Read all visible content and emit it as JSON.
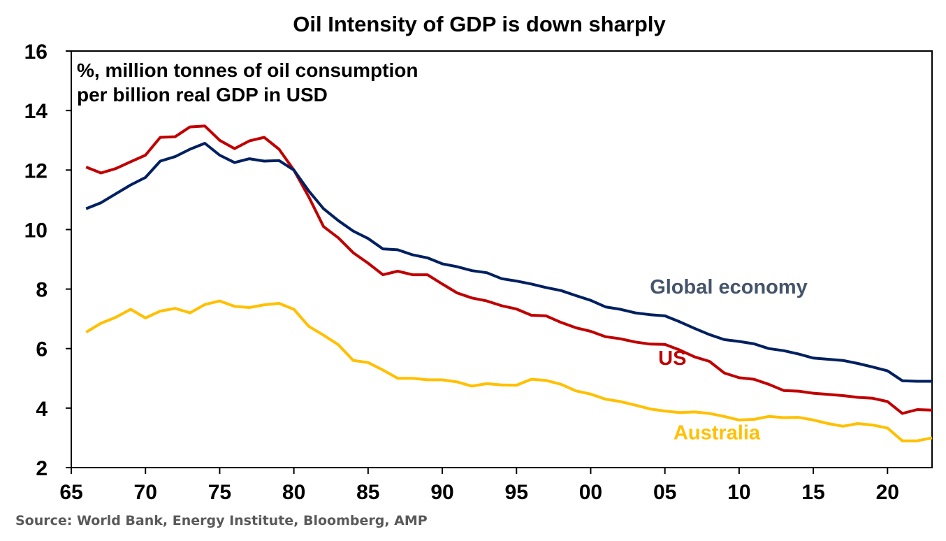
{
  "chart_data": {
    "type": "line",
    "title": "Oil Intensity of GDP is down sharply",
    "subtitle_lines": [
      "%, million tonnes of oil consumption",
      "per billion real GDP in USD"
    ],
    "xlabel": "",
    "ylabel": "",
    "xlim": [
      1965,
      2023
    ],
    "ylim": [
      2,
      16
    ],
    "grid": false,
    "x_ticks": [
      {
        "value": 1965,
        "label": "65"
      },
      {
        "value": 1970,
        "label": "70"
      },
      {
        "value": 1975,
        "label": "75"
      },
      {
        "value": 1980,
        "label": "80"
      },
      {
        "value": 1985,
        "label": "85"
      },
      {
        "value": 1990,
        "label": "90"
      },
      {
        "value": 1995,
        "label": "95"
      },
      {
        "value": 2000,
        "label": "00"
      },
      {
        "value": 2005,
        "label": "05"
      },
      {
        "value": 2010,
        "label": "10"
      },
      {
        "value": 2015,
        "label": "15"
      },
      {
        "value": 2020,
        "label": "20"
      }
    ],
    "y_ticks": [
      {
        "value": 2,
        "label": "2"
      },
      {
        "value": 4,
        "label": "4"
      },
      {
        "value": 6,
        "label": "6"
      },
      {
        "value": 8,
        "label": "8"
      },
      {
        "value": 10,
        "label": "10"
      },
      {
        "value": 12,
        "label": "12"
      },
      {
        "value": 14,
        "label": "14"
      },
      {
        "value": 16,
        "label": "16"
      }
    ],
    "x": [
      1966,
      1967,
      1968,
      1969,
      1970,
      1971,
      1972,
      1973,
      1974,
      1975,
      1976,
      1977,
      1978,
      1979,
      1980,
      1981,
      1982,
      1983,
      1984,
      1985,
      1986,
      1987,
      1988,
      1989,
      1990,
      1991,
      1992,
      1993,
      1994,
      1995,
      1996,
      1997,
      1998,
      1999,
      2000,
      2001,
      2002,
      2003,
      2004,
      2005,
      2006,
      2007,
      2008,
      2009,
      2010,
      2011,
      2012,
      2013,
      2014,
      2015,
      2016,
      2017,
      2018,
      2019,
      2020,
      2021,
      2022,
      2023
    ],
    "series": [
      {
        "name": "Global economy",
        "color": "#002060",
        "label_color": "#44546A",
        "values": [
          10.7,
          10.9,
          11.2,
          11.5,
          11.75,
          12.3,
          12.45,
          12.7,
          12.9,
          12.5,
          12.25,
          12.38,
          12.3,
          12.32,
          12.0,
          11.3,
          10.7,
          10.3,
          9.95,
          9.7,
          9.35,
          9.32,
          9.15,
          9.05,
          8.85,
          8.75,
          8.62,
          8.55,
          8.35,
          8.27,
          8.17,
          8.05,
          7.95,
          7.78,
          7.62,
          7.4,
          7.32,
          7.2,
          7.14,
          7.1,
          6.9,
          6.68,
          6.47,
          6.3,
          6.24,
          6.16,
          6.0,
          5.93,
          5.82,
          5.68,
          5.64,
          5.6,
          5.5,
          5.38,
          5.25,
          4.92,
          4.9,
          4.9
        ]
      },
      {
        "name": "US",
        "color": "#C00000",
        "label_color": "#C00000",
        "values": [
          12.1,
          11.9,
          12.05,
          12.28,
          12.5,
          13.1,
          13.12,
          13.45,
          13.48,
          13.0,
          12.72,
          12.98,
          13.1,
          12.7,
          12.0,
          11.1,
          10.1,
          9.72,
          9.22,
          8.87,
          8.48,
          8.6,
          8.48,
          8.48,
          8.17,
          7.87,
          7.7,
          7.6,
          7.44,
          7.33,
          7.12,
          7.1,
          6.88,
          6.7,
          6.58,
          6.4,
          6.33,
          6.22,
          6.15,
          6.14,
          5.95,
          5.72,
          5.57,
          5.18,
          5.02,
          4.97,
          4.8,
          4.59,
          4.57,
          4.5,
          4.46,
          4.42,
          4.36,
          4.33,
          4.22,
          3.82,
          3.95,
          3.93
        ]
      },
      {
        "name": "Australia",
        "color": "#FFC000",
        "label_color": "#FFC000",
        "values": [
          6.55,
          6.85,
          7.05,
          7.32,
          7.03,
          7.26,
          7.35,
          7.2,
          7.48,
          7.6,
          7.42,
          7.38,
          7.47,
          7.52,
          7.32,
          6.75,
          6.45,
          6.13,
          5.6,
          5.53,
          5.28,
          5.0,
          5.0,
          4.95,
          4.95,
          4.88,
          4.74,
          4.82,
          4.78,
          4.77,
          4.97,
          4.93,
          4.8,
          4.58,
          4.47,
          4.3,
          4.22,
          4.1,
          3.97,
          3.9,
          3.85,
          3.87,
          3.82,
          3.72,
          3.6,
          3.62,
          3.72,
          3.68,
          3.69,
          3.6,
          3.48,
          3.39,
          3.48,
          3.43,
          3.33,
          2.9,
          2.9,
          3.0
        ]
      }
    ],
    "series_labels": [
      {
        "text": "Global economy",
        "x": 2009.3,
        "y": 7.85
      },
      {
        "text": "US",
        "x": 2005.5,
        "y": 5.45
      },
      {
        "text": "Australia",
        "x": 2008.5,
        "y": 2.95
      }
    ],
    "legend": "none (inline labels)"
  },
  "source": "Source: World Bank, Energy Institute, Bloomberg, AMP"
}
